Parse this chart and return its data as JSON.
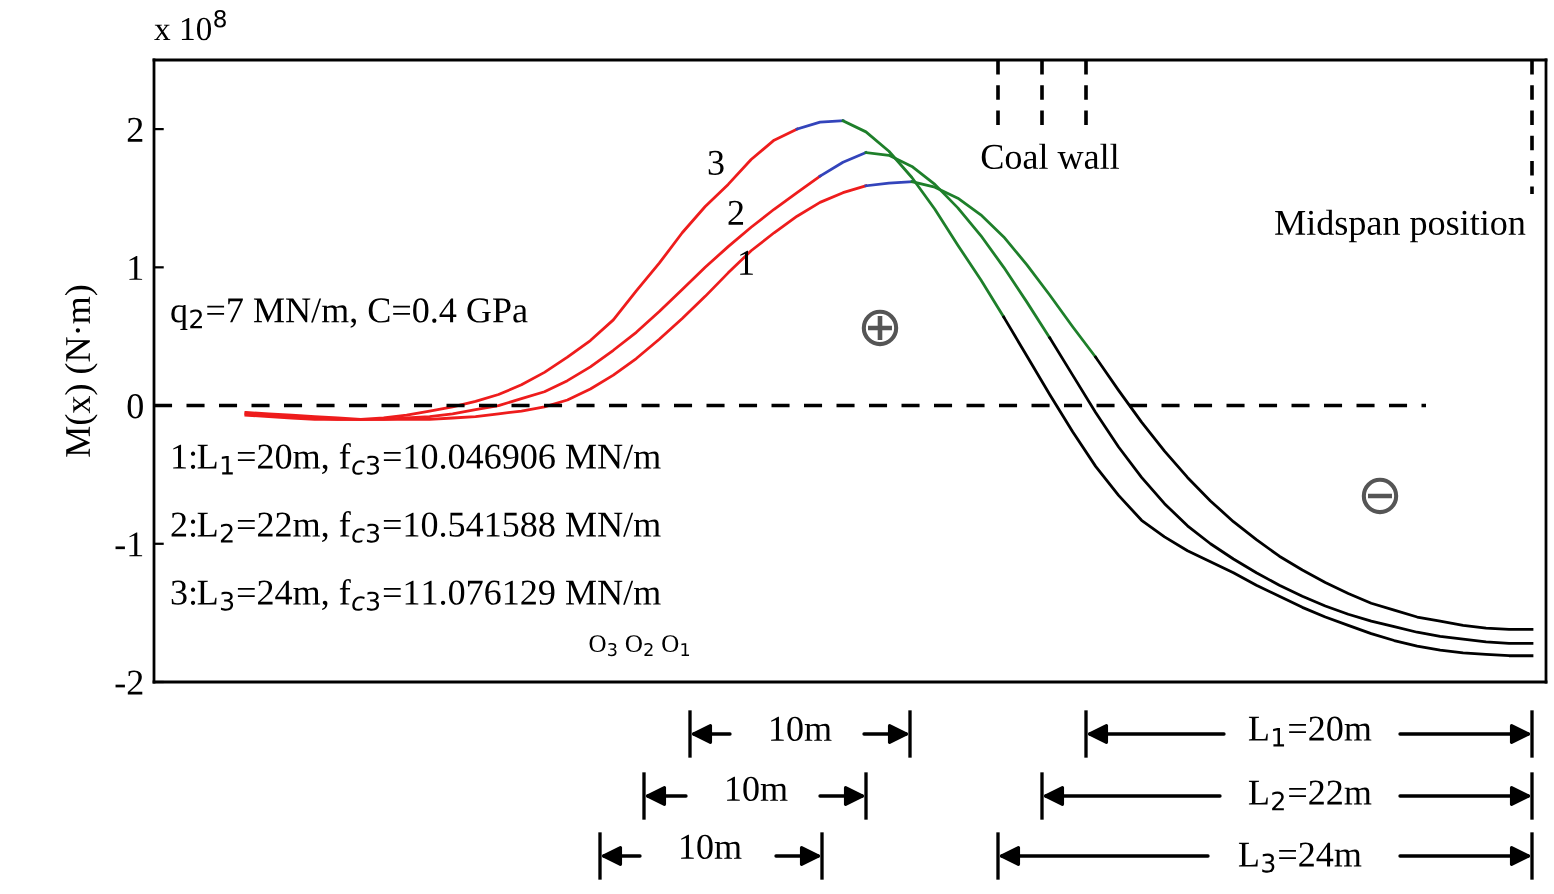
{
  "chart_data": {
    "type": "line",
    "ylabel": "M(x) (N·m)",
    "categories": [
      null,
      null,
      null,
      null,
      null,
      null,
      null,
      null,
      null,
      null,
      null,
      null,
      null,
      null,
      null,
      null,
      null,
      null,
      null,
      null,
      null,
      null,
      null,
      null,
      null,
      null,
      null,
      null,
      null,
      null,
      null,
      null,
      null,
      null,
      null,
      null,
      null,
      null,
      null,
      null,
      null,
      null,
      null,
      null,
      null,
      null,
      null,
      null,
      null,
      null,
      null,
      null,
      null,
      null,
      null,
      null,
      null,
      null,
      null,
      null,
      null
    ],
    "ylim": [
      -2,
      2.5
    ],
    "yticks": [
      -2,
      -1,
      0,
      1,
      2
    ],
    "tick_labels": "y",
    "grid": false,
    "legend": false,
    "marker": "none",
    "line_style": "solid",
    "series": [
      {
        "color": "#ee1c1c",
        "values": [
          null,
          null,
          null,
          null,
          -0.07,
          -0.08,
          -0.09,
          -0.1,
          -0.1,
          -0.1,
          -0.09,
          -0.07,
          -0.04,
          -0.01,
          0.03,
          0.08,
          0.15,
          0.24,
          0.35,
          0.47,
          0.62,
          0.83,
          1.03,
          1.25,
          1.44,
          1.6,
          1.78,
          1.92,
          2.0,
          null,
          null,
          null,
          null,
          null,
          null,
          null,
          null,
          null,
          null,
          null,
          null,
          null,
          null,
          null,
          null,
          null,
          null,
          null,
          null,
          null,
          null,
          null,
          null,
          null,
          null,
          null,
          null,
          null,
          null,
          null,
          null
        ]
      },
      {
        "color": "#3344bb",
        "values": [
          null,
          null,
          null,
          null,
          null,
          null,
          null,
          null,
          null,
          null,
          null,
          null,
          null,
          null,
          null,
          null,
          null,
          null,
          null,
          null,
          null,
          null,
          null,
          null,
          null,
          null,
          null,
          null,
          2.0,
          2.05,
          2.06,
          null,
          null,
          null,
          null,
          null,
          null,
          null,
          null,
          null,
          null,
          null,
          null,
          null,
          null,
          null,
          null,
          null,
          null,
          null,
          null,
          null,
          null,
          null,
          null,
          null,
          null,
          null,
          null,
          null,
          null
        ]
      },
      {
        "color": "#1e7f2a",
        "values": [
          null,
          null,
          null,
          null,
          null,
          null,
          null,
          null,
          null,
          null,
          null,
          null,
          null,
          null,
          null,
          null,
          null,
          null,
          null,
          null,
          null,
          null,
          null,
          null,
          null,
          null,
          null,
          null,
          null,
          null,
          2.06,
          1.98,
          1.84,
          1.65,
          1.42,
          1.16,
          0.91,
          0.64,
          null,
          null,
          null,
          null,
          null,
          null,
          null,
          null,
          null,
          null,
          null,
          null,
          null,
          null,
          null,
          null,
          null,
          null,
          null,
          null,
          null,
          null,
          null
        ]
      },
      {
        "color": "#000000",
        "values": [
          null,
          null,
          null,
          null,
          null,
          null,
          null,
          null,
          null,
          null,
          null,
          null,
          null,
          null,
          null,
          null,
          null,
          null,
          null,
          null,
          null,
          null,
          null,
          null,
          null,
          null,
          null,
          null,
          null,
          null,
          null,
          null,
          null,
          null,
          null,
          null,
          null,
          0.64,
          0.36,
          0.08,
          -0.19,
          -0.44,
          -0.65,
          -0.83,
          -0.95,
          -1.05,
          -1.13,
          -1.21,
          -1.3,
          -1.38,
          -1.46,
          -1.53,
          -1.59,
          -1.65,
          -1.7,
          -1.74,
          -1.77,
          -1.79,
          -1.8,
          -1.81,
          -1.81
        ]
      },
      {
        "color": "#ee1c1c",
        "values": [
          null,
          null,
          null,
          null,
          -0.06,
          -0.07,
          -0.08,
          -0.09,
          -0.1,
          -0.1,
          -0.1,
          -0.09,
          -0.08,
          -0.06,
          -0.03,
          0.0,
          0.05,
          0.1,
          0.18,
          0.28,
          0.4,
          0.53,
          0.68,
          0.84,
          1.0,
          1.15,
          1.29,
          1.42,
          1.54,
          1.66,
          null,
          null,
          null,
          null,
          null,
          null,
          null,
          null,
          null,
          null,
          null,
          null,
          null,
          null,
          null,
          null,
          null,
          null,
          null,
          null,
          null,
          null,
          null,
          null,
          null,
          null,
          null,
          null,
          null,
          null,
          null
        ]
      },
      {
        "color": "#3344bb",
        "values": [
          null,
          null,
          null,
          null,
          null,
          null,
          null,
          null,
          null,
          null,
          null,
          null,
          null,
          null,
          null,
          null,
          null,
          null,
          null,
          null,
          null,
          null,
          null,
          null,
          null,
          null,
          null,
          null,
          null,
          1.66,
          1.76,
          1.83,
          null,
          null,
          null,
          null,
          null,
          null,
          null,
          null,
          null,
          null,
          null,
          null,
          null,
          null,
          null,
          null,
          null,
          null,
          null,
          null,
          null,
          null,
          null,
          null,
          null,
          null,
          null,
          null,
          null
        ]
      },
      {
        "color": "#1e7f2a",
        "values": [
          null,
          null,
          null,
          null,
          null,
          null,
          null,
          null,
          null,
          null,
          null,
          null,
          null,
          null,
          null,
          null,
          null,
          null,
          null,
          null,
          null,
          null,
          null,
          null,
          null,
          null,
          null,
          null,
          null,
          null,
          null,
          1.83,
          1.81,
          1.73,
          1.6,
          1.43,
          1.23,
          1.0,
          0.75,
          0.49,
          null,
          null,
          null,
          null,
          null,
          null,
          null,
          null,
          null,
          null,
          null,
          null,
          null,
          null,
          null,
          null,
          null,
          null,
          null,
          null,
          null
        ]
      },
      {
        "color": "#000000",
        "values": [
          null,
          null,
          null,
          null,
          null,
          null,
          null,
          null,
          null,
          null,
          null,
          null,
          null,
          null,
          null,
          null,
          null,
          null,
          null,
          null,
          null,
          null,
          null,
          null,
          null,
          null,
          null,
          null,
          null,
          null,
          null,
          null,
          null,
          null,
          null,
          null,
          null,
          null,
          null,
          0.49,
          0.22,
          -0.05,
          -0.3,
          -0.52,
          -0.71,
          -0.87,
          -1.0,
          -1.11,
          -1.21,
          -1.3,
          -1.38,
          -1.45,
          -1.51,
          -1.56,
          -1.6,
          -1.64,
          -1.67,
          -1.69,
          -1.71,
          -1.72,
          -1.72
        ]
      },
      {
        "color": "#ee1c1c",
        "values": [
          null,
          null,
          null,
          null,
          -0.05,
          -0.06,
          -0.07,
          -0.08,
          -0.09,
          -0.1,
          -0.1,
          -0.1,
          -0.1,
          -0.09,
          -0.08,
          -0.06,
          -0.04,
          -0.01,
          0.04,
          0.12,
          0.22,
          0.34,
          0.48,
          0.63,
          0.79,
          0.96,
          1.12,
          1.25,
          1.37,
          1.47,
          1.54,
          1.59,
          null,
          null,
          null,
          null,
          null,
          null,
          null,
          null,
          null,
          null,
          null,
          null,
          null,
          null,
          null,
          null,
          null,
          null,
          null,
          null,
          null,
          null,
          null,
          null,
          null,
          null,
          null,
          null,
          null
        ]
      },
      {
        "color": "#3344bb",
        "values": [
          null,
          null,
          null,
          null,
          null,
          null,
          null,
          null,
          null,
          null,
          null,
          null,
          null,
          null,
          null,
          null,
          null,
          null,
          null,
          null,
          null,
          null,
          null,
          null,
          null,
          null,
          null,
          null,
          null,
          null,
          null,
          1.59,
          1.61,
          1.62,
          null,
          null,
          null,
          null,
          null,
          null,
          null,
          null,
          null,
          null,
          null,
          null,
          null,
          null,
          null,
          null,
          null,
          null,
          null,
          null,
          null,
          null,
          null,
          null,
          null,
          null,
          null
        ]
      },
      {
        "color": "#1e7f2a",
        "values": [
          null,
          null,
          null,
          null,
          null,
          null,
          null,
          null,
          null,
          null,
          null,
          null,
          null,
          null,
          null,
          null,
          null,
          null,
          null,
          null,
          null,
          null,
          null,
          null,
          null,
          null,
          null,
          null,
          null,
          null,
          null,
          null,
          null,
          1.62,
          1.58,
          1.5,
          1.38,
          1.22,
          1.02,
          0.8,
          0.57,
          0.35,
          null,
          null,
          null,
          null,
          null,
          null,
          null,
          null,
          null,
          null,
          null,
          null,
          null,
          null,
          null,
          null,
          null,
          null,
          null
        ]
      },
      {
        "color": "#000000",
        "values": [
          null,
          null,
          null,
          null,
          null,
          null,
          null,
          null,
          null,
          null,
          null,
          null,
          null,
          null,
          null,
          null,
          null,
          null,
          null,
          null,
          null,
          null,
          null,
          null,
          null,
          null,
          null,
          null,
          null,
          null,
          null,
          null,
          null,
          null,
          null,
          null,
          null,
          null,
          null,
          null,
          null,
          0.35,
          0.11,
          -0.12,
          -0.33,
          -0.52,
          -0.69,
          -0.84,
          -0.97,
          -1.09,
          -1.19,
          -1.28,
          -1.36,
          -1.43,
          -1.48,
          -1.53,
          -1.56,
          -1.59,
          -1.61,
          -1.62,
          -1.62
        ]
      }
    ],
    "ref_lines": [
      {
        "axis": "y",
        "value": 0,
        "line_style": "dashed",
        "color": "#000000"
      }
    ],
    "annotations": [
      "x 10$^{8}$",
      "q$_{2}$=7 MN/m, C=0.4 GPa",
      "1:L$_{1}$=20m, f$_{c3}$=10.046906 MN/m",
      "2:L$_{2}$=22m, f$_{c3}$=10.541588 MN/m",
      "3:L$_{3}$=24m, f$_{c3}$=11.076129 MN/m",
      "1",
      "2",
      "3",
      "⊕",
      "⊖",
      "Coal wall",
      "Midspan position",
      "O$_{3}$ O$_{2}$ O$_{1}$",
      "10m",
      "10m",
      "10m",
      "L$_{1}$=20m",
      "L$_{2}$=22m",
      "L$_{3}$=24m"
    ]
  }
}
